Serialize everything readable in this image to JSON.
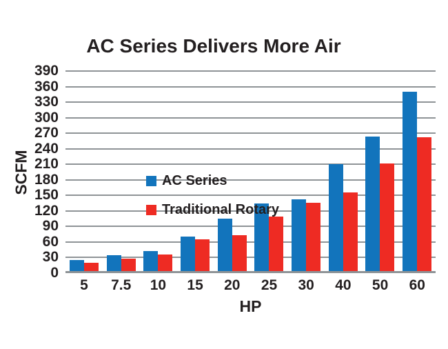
{
  "chart_data": {
    "type": "bar",
    "title": "AC Series Delivers More Air",
    "xlabel": "HP",
    "ylabel": "SCFM",
    "categories": [
      "5",
      "7.5",
      "10",
      "15",
      "20",
      "25",
      "30",
      "40",
      "50",
      "60"
    ],
    "series": [
      {
        "name": "AC Series",
        "color": "#1274BC",
        "values": [
          25,
          35,
          43,
          71,
          105,
          135,
          142,
          210,
          263,
          350
        ]
      },
      {
        "name": "Traditional Rotary",
        "color": "#EE2B23",
        "values": [
          20,
          28,
          36,
          65,
          73,
          109,
          136,
          156,
          212,
          262
        ]
      }
    ],
    "ylim": [
      0,
      390
    ],
    "ytick_step": 30,
    "yticks": [
      0,
      30,
      60,
      90,
      120,
      150,
      180,
      210,
      240,
      270,
      300,
      330,
      360,
      390
    ],
    "grid": "horizontal",
    "legend_position": "inside-top-left",
    "colors": {
      "gridline": "#8E9396",
      "text": "#231F20",
      "background": "#FFFFFF"
    }
  }
}
